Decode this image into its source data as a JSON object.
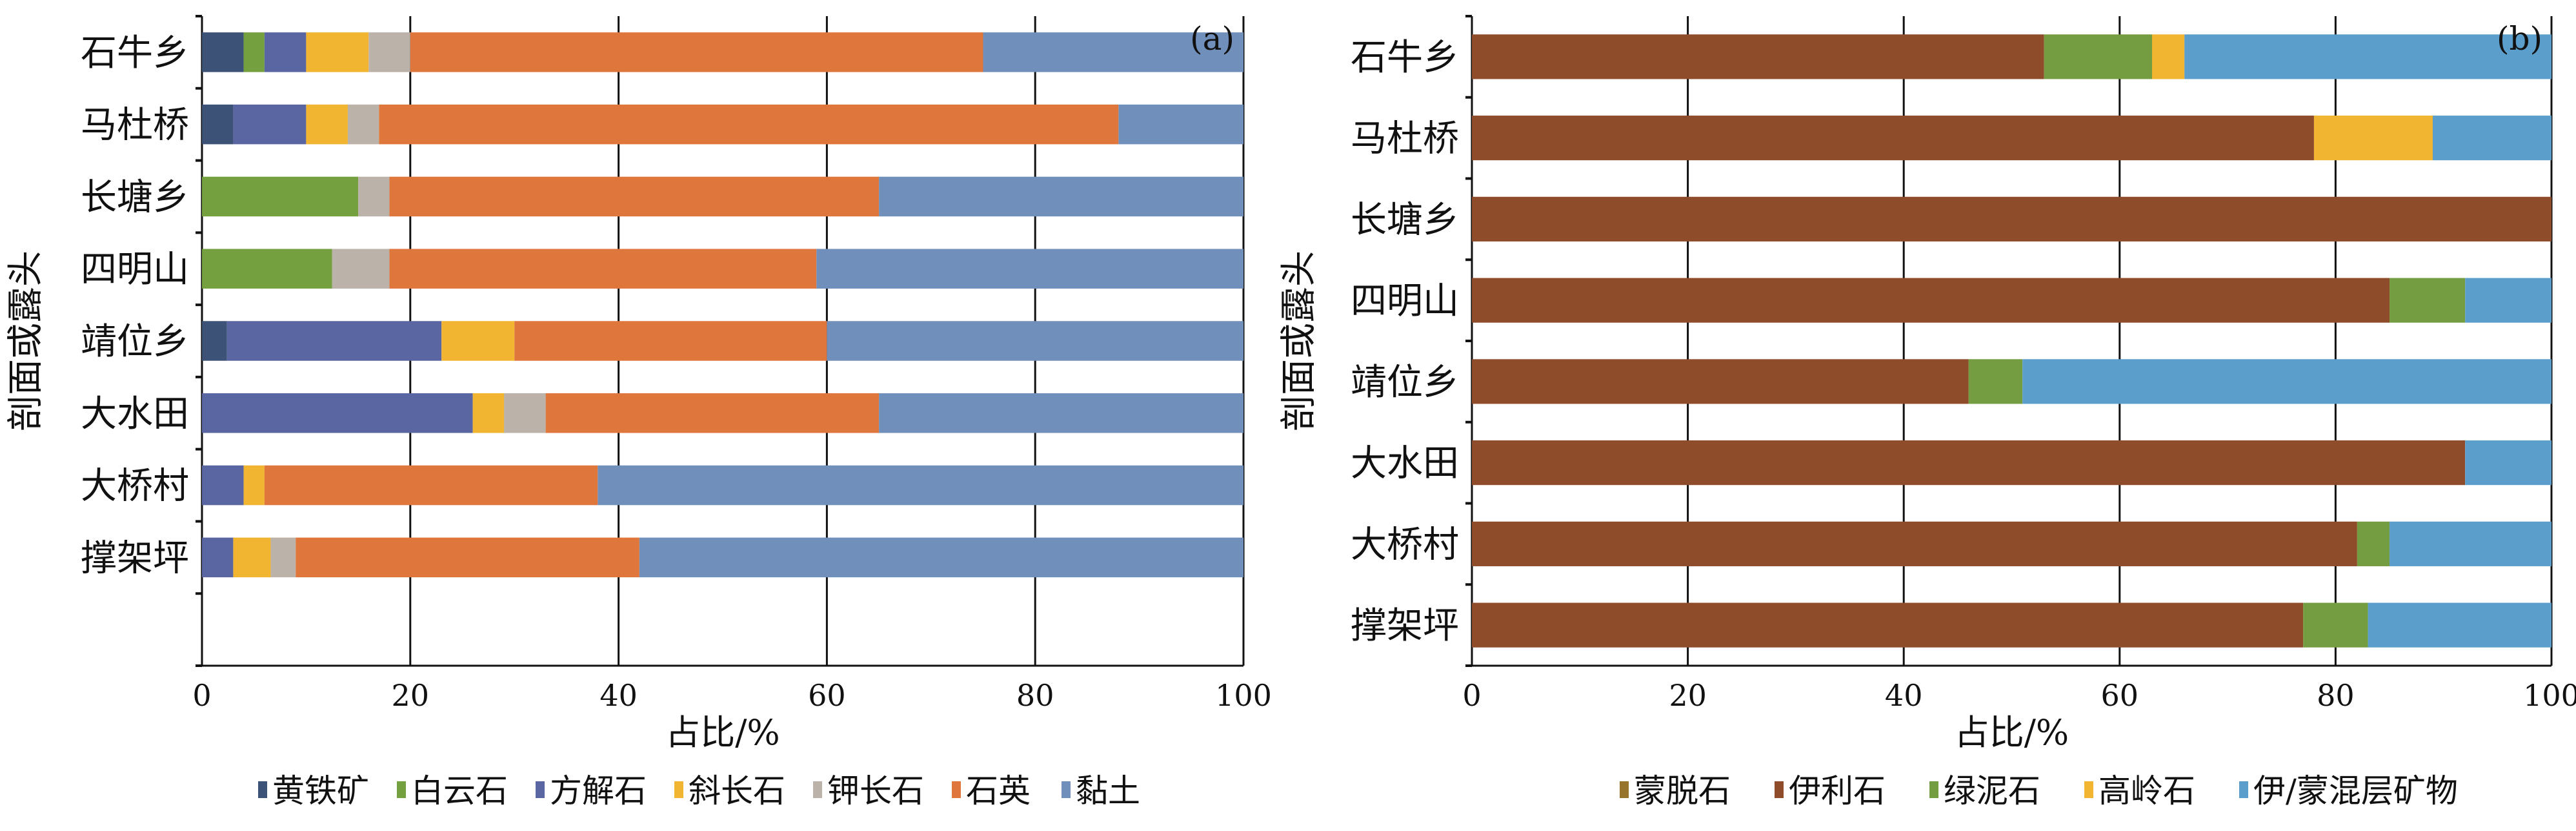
{
  "chart_data": [
    {
      "type": "bar",
      "orientation": "horizontal-stacked",
      "panel_label": "(a)",
      "xlabel": "占比/%",
      "ylabel": "剖面或露头",
      "xlim": [
        0,
        100
      ],
      "xticks": [
        "0",
        "20",
        "40",
        "60",
        "80",
        "100"
      ],
      "grid": true,
      "legend_position": "bottom",
      "categories": [
        "石牛乡",
        "马杜桥",
        "长塘乡",
        "四明山",
        "靖位乡",
        "大水田",
        "大桥村",
        "撑架坪"
      ],
      "series": [
        {
          "name": "黄铁矿",
          "color": "#3D5277",
          "values": [
            4,
            3,
            0,
            0,
            2.4,
            0,
            0,
            0
          ]
        },
        {
          "name": "白云石",
          "color": "#74A040",
          "values": [
            2,
            0,
            15,
            12.5,
            0,
            0,
            0,
            0
          ]
        },
        {
          "name": "方解石",
          "color": "#5A66A2",
          "values": [
            4,
            7,
            0,
            0,
            20.6,
            26,
            4,
            3
          ]
        },
        {
          "name": "斜长石",
          "color": "#F2B531",
          "values": [
            6,
            4,
            0,
            0,
            7,
            3,
            2,
            3.6
          ]
        },
        {
          "name": "钾长石",
          "color": "#BBB2AA",
          "values": [
            4,
            3,
            3,
            5.5,
            0,
            4,
            0,
            2.4
          ]
        },
        {
          "name": "石英",
          "color": "#DF773C",
          "values": [
            55,
            71,
            47,
            41,
            30,
            32,
            32,
            33
          ]
        },
        {
          "name": "黏土",
          "color": "#718FBB",
          "values": [
            25,
            12,
            35,
            41,
            40,
            35,
            62,
            58
          ]
        }
      ]
    },
    {
      "type": "bar",
      "orientation": "horizontal-stacked",
      "panel_label": "(b)",
      "xlabel": "占比/%",
      "ylabel": "剖面或露头",
      "xlim": [
        0,
        100
      ],
      "xticks": [
        "0",
        "20",
        "40",
        "60",
        "80",
        "100"
      ],
      "grid": true,
      "legend_position": "bottom",
      "categories": [
        "石牛乡",
        "马杜桥",
        "长塘乡",
        "四明山",
        "靖位乡",
        "大水田",
        "大桥村",
        "撑架坪"
      ],
      "series": [
        {
          "name": "蒙脱石",
          "color": "#97742C",
          "values": [
            0,
            0,
            0,
            0,
            0,
            0,
            0,
            0
          ]
        },
        {
          "name": "伊利石",
          "color": "#8E4C2B",
          "values": [
            53,
            78,
            100,
            85,
            46,
            92,
            82,
            77
          ]
        },
        {
          "name": "绿泥石",
          "color": "#749C40",
          "values": [
            10,
            0,
            0,
            7,
            5,
            0,
            3,
            6
          ]
        },
        {
          "name": "高岭石",
          "color": "#F2B531",
          "values": [
            3,
            11,
            0,
            0,
            0,
            0,
            0,
            0
          ]
        },
        {
          "name": "伊/蒙混层矿物",
          "color": "#5B9ECB",
          "values": [
            34,
            11,
            0,
            8,
            49,
            8,
            15,
            17
          ]
        }
      ]
    }
  ]
}
